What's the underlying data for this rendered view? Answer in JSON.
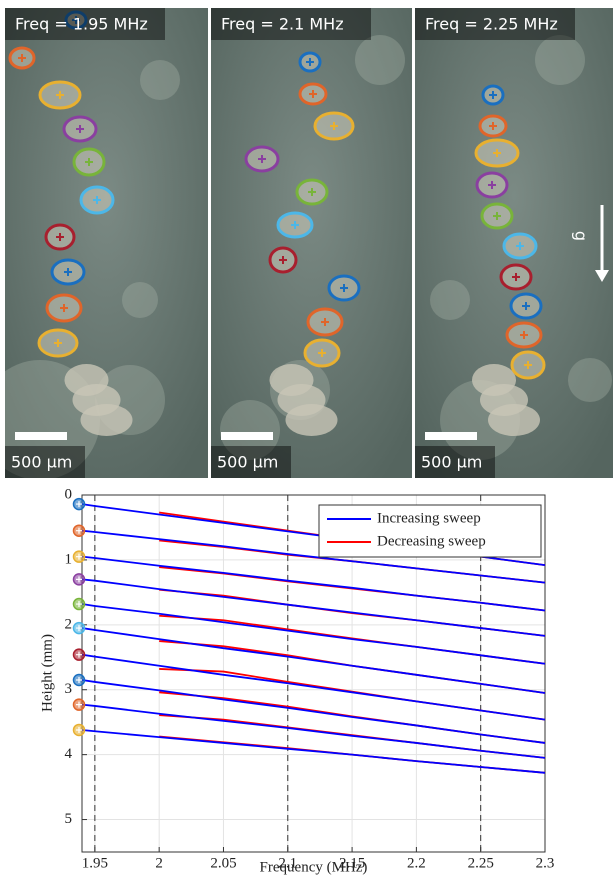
{
  "photos": {
    "panels": [
      {
        "label": "Freq = 1.95 MHz",
        "scale_bar": "500 µm"
      },
      {
        "label": "Freq = 2.1 MHz",
        "scale_bar": "500 µm"
      },
      {
        "label": "Freq = 2.25 MHz",
        "scale_bar": "500 µm"
      }
    ],
    "gravity_label": "g"
  },
  "chart_data": {
    "type": "line",
    "x_label": "Frequency (MHz)",
    "y_label": "Height (mm)",
    "x": [
      1.94,
      1.95,
      2,
      2.05,
      2.1,
      2.15,
      2.2,
      2.25,
      2.3
    ],
    "xlim": [
      1.94,
      2.3
    ],
    "xticks": [
      1.95,
      2,
      2.05,
      2.1,
      2.15,
      2.2,
      2.25,
      2.3
    ],
    "ylim": [
      0,
      5.5
    ],
    "yticks": [
      0,
      1,
      2,
      3,
      4,
      5
    ],
    "y_inverted": true,
    "grid": true,
    "legend": "upper right",
    "reference_lines": [
      1.95,
      2.1,
      2.25
    ],
    "marker_colors": [
      "#1a6fc0",
      "#e0652a",
      "#e8b030",
      "#8a3fa0",
      "#78b43a",
      "#4cb7e8",
      "#a81f2e",
      "#1a6fc0",
      "#e0652a",
      "#e8b030"
    ],
    "series": [
      {
        "name": "Increasing sweep",
        "color": "#0000ff",
        "lines": [
          [
            0.14,
            0.17,
            0.3,
            0.43,
            0.56,
            0.69,
            0.82,
            0.95,
            1.08
          ],
          [
            0.55,
            0.57,
            0.68,
            0.79,
            0.91,
            1.02,
            1.13,
            1.24,
            1.35
          ],
          [
            0.95,
            0.97,
            1.09,
            1.2,
            1.32,
            1.43,
            1.55,
            1.66,
            1.78
          ],
          [
            1.3,
            1.32,
            1.45,
            1.57,
            1.69,
            1.81,
            1.93,
            2.05,
            2.17
          ],
          [
            1.68,
            1.71,
            1.83,
            1.96,
            2.09,
            2.22,
            2.34,
            2.47,
            2.6
          ],
          [
            2.05,
            2.08,
            2.22,
            2.36,
            2.49,
            2.63,
            2.77,
            2.91,
            3.05
          ],
          [
            2.46,
            2.49,
            2.63,
            2.77,
            2.9,
            3.04,
            3.18,
            3.32,
            3.46
          ],
          [
            2.85,
            2.88,
            3.01,
            3.15,
            3.28,
            3.42,
            3.55,
            3.69,
            3.82
          ],
          [
            3.23,
            3.25,
            3.37,
            3.48,
            3.59,
            3.71,
            3.82,
            3.94,
            4.05
          ],
          [
            3.62,
            3.64,
            3.73,
            3.82,
            3.91,
            4.0,
            4.1,
            4.19,
            4.28
          ]
        ]
      },
      {
        "name": "Decreasing sweep",
        "color": "#ff0000",
        "lines": [
          [
            null,
            null,
            0.27,
            0.41,
            0.55,
            0.69,
            0.82,
            0.95,
            1.08
          ],
          [
            null,
            null,
            0.7,
            0.8,
            0.92,
            1.02,
            1.13,
            1.24,
            1.35
          ],
          [
            null,
            null,
            1.11,
            1.21,
            1.33,
            1.44,
            1.55,
            1.66,
            1.78
          ],
          [
            null,
            null,
            1.46,
            1.55,
            1.69,
            1.82,
            1.93,
            2.05,
            2.17
          ],
          [
            null,
            null,
            1.86,
            1.93,
            2.07,
            2.21,
            2.34,
            2.47,
            2.6
          ],
          [
            null,
            null,
            2.25,
            2.33,
            2.47,
            2.63,
            2.77,
            2.91,
            3.05
          ],
          [
            null,
            null,
            2.68,
            2.72,
            2.88,
            3.03,
            3.18,
            3.32,
            3.46
          ],
          [
            null,
            null,
            3.04,
            3.13,
            3.26,
            3.41,
            3.55,
            3.69,
            3.82
          ],
          [
            null,
            null,
            3.39,
            3.46,
            3.58,
            3.7,
            3.82,
            3.94,
            4.05
          ],
          [
            null,
            null,
            3.72,
            3.81,
            3.9,
            4.0,
            4.1,
            4.19,
            4.28
          ]
        ]
      }
    ]
  }
}
